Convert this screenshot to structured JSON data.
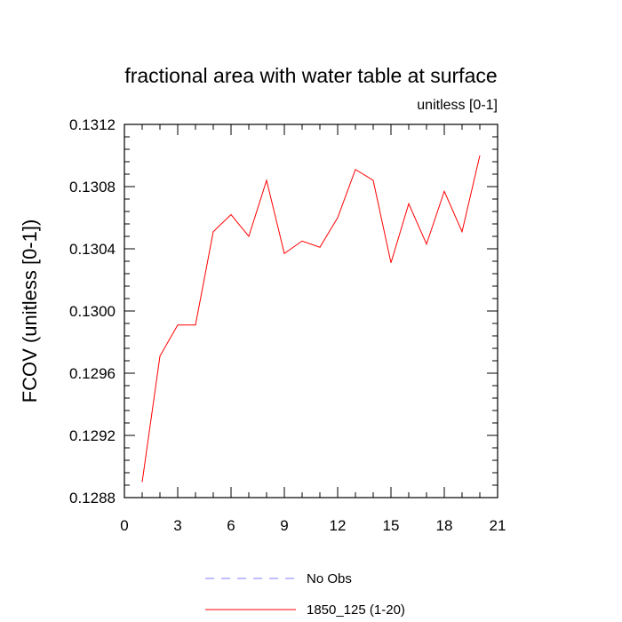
{
  "chart_data": {
    "type": "line",
    "title": "fractional area with water table at surface",
    "units_label": "unitless [0-1]",
    "xlabel": "",
    "ylabel": "FCOV  (unitless [0-1])",
    "xlim": [
      0,
      21
    ],
    "ylim": [
      0.1288,
      0.1312
    ],
    "x_ticks": [
      0,
      3,
      6,
      9,
      12,
      15,
      18,
      21
    ],
    "y_ticks": [
      0.1288,
      0.1292,
      0.1296,
      0.13,
      0.1304,
      0.1308,
      0.1312
    ],
    "y_tick_labels": [
      "0.1288",
      "0.1292",
      "0.1296",
      "0.1300",
      "0.1304",
      "0.1308",
      "0.1312"
    ],
    "grid": false,
    "legend_position": "bottom",
    "series": [
      {
        "name": "No Obs",
        "color": "#8080ff",
        "dash": "dashed",
        "x": [],
        "values": []
      },
      {
        "name": "1850_125 (1-20)",
        "color": "#ff0000",
        "dash": "solid",
        "x": [
          1,
          2,
          3,
          4,
          5,
          6,
          7,
          8,
          9,
          10,
          11,
          12,
          13,
          14,
          15,
          16,
          17,
          18,
          19,
          20
        ],
        "values": [
          0.1289,
          0.12971,
          0.12991,
          0.12991,
          0.13051,
          0.13062,
          0.13048,
          0.13084,
          0.13037,
          0.13045,
          0.13041,
          0.1306,
          0.13091,
          0.13084,
          0.13031,
          0.13069,
          0.13043,
          0.13077,
          0.13051,
          0.131
        ]
      }
    ]
  }
}
